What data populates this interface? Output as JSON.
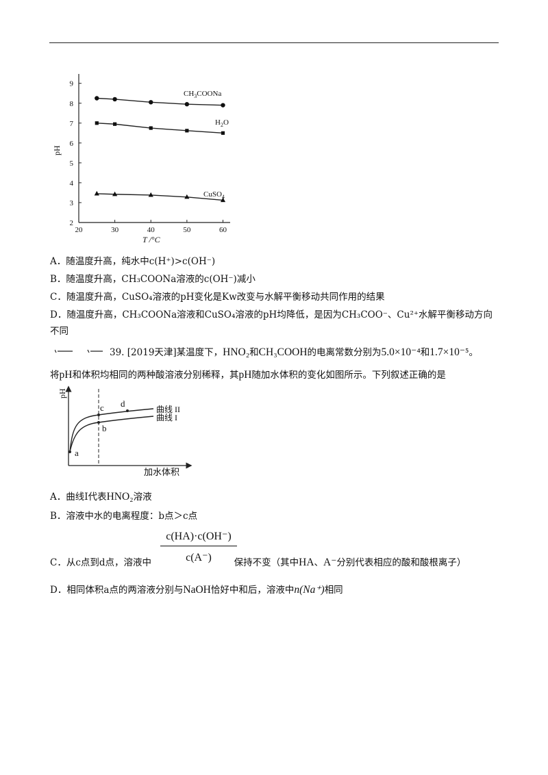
{
  "chart1": {
    "type": "line",
    "ylabel": "pH",
    "xlabel": "T /°C",
    "xticks": [
      "20",
      "30",
      "40",
      "50",
      "60"
    ],
    "yticks": [
      "2",
      "3",
      "4",
      "5",
      "6",
      "7",
      "8",
      "9"
    ],
    "xlim": [
      20,
      62
    ],
    "ylim": [
      2,
      9.3
    ],
    "series": [
      {
        "name": "CH3COONa",
        "marker": "circle",
        "x": [
          25,
          30,
          40,
          50,
          60
        ],
        "y": [
          8.25,
          8.2,
          8.05,
          7.95,
          7.9
        ]
      },
      {
        "name": "H2O",
        "marker": "square",
        "x": [
          25,
          30,
          40,
          50,
          60
        ],
        "y": [
          7.0,
          6.95,
          6.75,
          6.62,
          6.5
        ]
      },
      {
        "name": "CuSO4",
        "marker": "triangle",
        "x": [
          25,
          30,
          40,
          50,
          60
        ],
        "y": [
          3.45,
          3.42,
          3.38,
          3.28,
          3.12
        ]
      }
    ]
  },
  "q38_options": {
    "a": "A．随温度升高，纯水中c(H⁺)>c(OH⁻)",
    "b": "B．随温度升高，CH₃COONa溶液的c(OH⁻)减小",
    "c": "C．随温度升高，CuSO₄溶液的pH变化是Kw改变与水解平衡移动共同作用的结果",
    "d1": "D．随温度升高，CH₃COONa溶液和CuSO₄溶液的pH均降低，是因为CH₃COO⁻、Cu²⁺水解平衡移动方向",
    "d2": "不同"
  },
  "q39": {
    "number": "39.",
    "source": "[2019天津]某温度下，",
    "hno2": "HNO₂",
    "he": "和",
    "ch3cooh": "CH₃COOH",
    "text1": "的电离常数分别为",
    "k1": "5.0×10⁻⁴",
    "he2": "和",
    "k2": "1.7×10⁻⁵",
    "end1": "。",
    "line2a": "将",
    "ph": "pH",
    "line2b": "和体积均相同的两种酸溶液分别稀释，其",
    "ph2": "pH",
    "line2c": "随加水体积的变化如图所示。下列叙述正确的是"
  },
  "chart2": {
    "type": "line",
    "ylabel": "pH",
    "xlabel": "加水体积",
    "series": [
      {
        "name": "曲线 II"
      },
      {
        "name": "曲线 I"
      }
    ],
    "point_labels": [
      "a",
      "b",
      "c",
      "d"
    ]
  },
  "q39_options": {
    "a_prefix": "A．曲线Ⅰ代表",
    "a_formula": "HNO₂",
    "a_suffix": "溶液",
    "b": "B．溶液中水的电离程度：b点＞c点",
    "c_prefix": "C．从c点到d点，溶液中",
    "frac_num": "c(HA)·c(OH⁻)",
    "frac_den": "c(A⁻)",
    "c_mid": "保持不变（其中",
    "c_ha": "HA",
    "c_sep": "、",
    "c_a": "A⁻",
    "c_suffix": "分别代表相应的酸和酸根离子）",
    "d_prefix": "D．相同体积a点的两溶液分别与",
    "d_naoh": "NaOH",
    "d_mid": "恰好中和后，溶液中",
    "d_n": "n(Na⁺)",
    "d_suffix": "相同"
  }
}
